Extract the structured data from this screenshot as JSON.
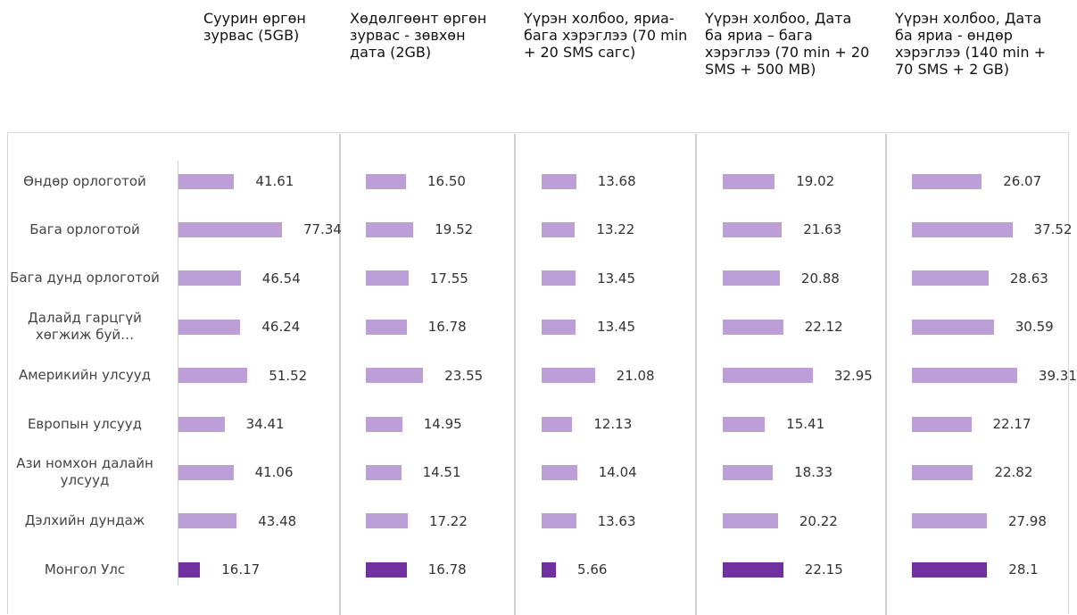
{
  "chart_data": [
    {
      "type": "bar",
      "title": "Суурин өргөн зурвас (5GB)",
      "categories": [
        "Өндөр орлоготой",
        "Бага орлоготой",
        "Бага дунд орлоготой",
        "Далайд гарцгүй хөгжиж буй…",
        "Америкийн улсууд",
        "Европын улсууд",
        "Ази номхон далайн улсууд",
        "Дэлхийн дундаж",
        "Монгол Улс"
      ],
      "values": [
        41.61,
        77.34,
        46.54,
        46.24,
        51.52,
        34.41,
        41.06,
        43.48,
        16.17
      ],
      "colors": [
        "#bb9fd6",
        "#bb9fd6",
        "#bb9fd6",
        "#bb9fd6",
        "#bb9fd6",
        "#bb9fd6",
        "#bb9fd6",
        "#bb9fd6",
        "#7030a0"
      ],
      "xlim": [
        0,
        100
      ]
    },
    {
      "type": "bar",
      "title": "Хөдөлгөөнт өргөн зурвас - зөвхөн дата (2GB)",
      "values": [
        16.5,
        19.52,
        17.55,
        16.78,
        23.55,
        14.95,
        14.51,
        17.22,
        16.78
      ],
      "value_labels": [
        "16.50",
        "19.52",
        "17.55",
        "16.78",
        "23.55",
        "14.95",
        "14.51",
        "17.22",
        "16.78"
      ],
      "colors": [
        "#bb9fd6",
        "#bb9fd6",
        "#bb9fd6",
        "#bb9fd6",
        "#bb9fd6",
        "#bb9fd6",
        "#bb9fd6",
        "#bb9fd6",
        "#7030a0"
      ],
      "xlim": [
        0,
        55
      ]
    },
    {
      "type": "bar",
      "title": "Үүрэн холбоо, яриа-бага хэрэглээ (70 min + 20 SMS сагс)",
      "values": [
        13.68,
        13.22,
        13.45,
        13.45,
        21.08,
        12.13,
        14.04,
        13.63,
        5.66
      ],
      "colors": [
        "#bb9fd6",
        "#bb9fd6",
        "#bb9fd6",
        "#bb9fd6",
        "#bb9fd6",
        "#bb9fd6",
        "#bb9fd6",
        "#bb9fd6",
        "#7030a0"
      ],
      "xlim": [
        0,
        53
      ]
    },
    {
      "type": "bar",
      "title": "Үүрэн холбоо, Дата ба яриа – бага хэрэглээ (70 min + 20 SMS + 500 MB)",
      "values": [
        19.02,
        21.63,
        20.88,
        22.12,
        32.95,
        15.41,
        18.33,
        20.22,
        22.15
      ],
      "colors": [
        "#bb9fd6",
        "#bb9fd6",
        "#bb9fd6",
        "#bb9fd6",
        "#bb9fd6",
        "#bb9fd6",
        "#bb9fd6",
        "#bb9fd6",
        "#7030a0"
      ],
      "xlim": [
        0,
        49
      ]
    },
    {
      "type": "bar",
      "title": "Үүрэн холбоо, Дата ба яриа - өндөр хэрэглээ (140 min + 70 SMS + 2 GB)",
      "values": [
        26.07,
        37.52,
        28.63,
        30.59,
        39.31,
        22.17,
        22.82,
        27.98,
        28.1
      ],
      "colors": [
        "#bb9fd6",
        "#bb9fd6",
        "#bb9fd6",
        "#bb9fd6",
        "#bb9fd6",
        "#bb9fd6",
        "#bb9fd6",
        "#bb9fd6",
        "#7030a0"
      ],
      "xlim": [
        0,
        50
      ]
    }
  ]
}
